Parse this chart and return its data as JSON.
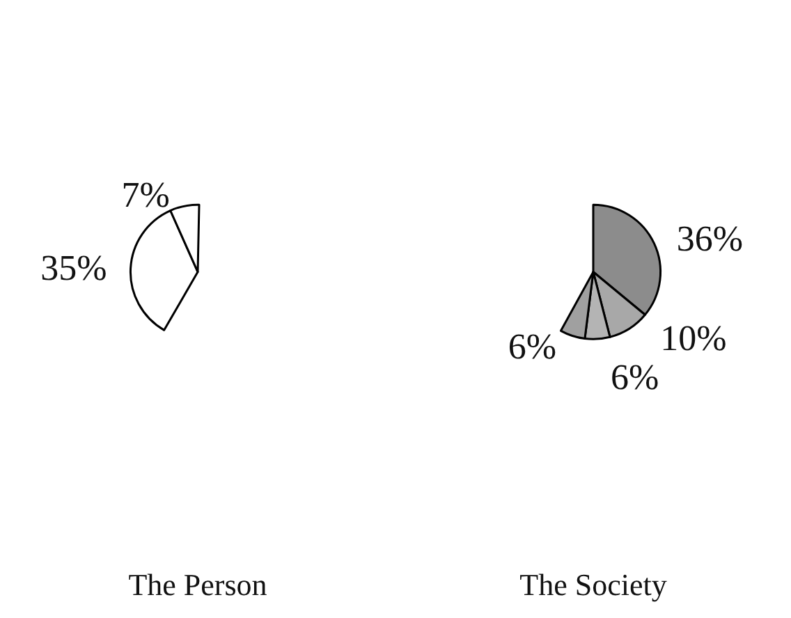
{
  "chart_data": [
    {
      "type": "pie",
      "title": "The Person",
      "categories": [
        null,
        null
      ],
      "values": [
        35,
        7
      ],
      "colors": [
        "#ffffff",
        "#ffffff"
      ],
      "value_labels": [
        "35%",
        "7%"
      ]
    },
    {
      "type": "pie",
      "title": "The Society",
      "categories": [
        null,
        null,
        null,
        null
      ],
      "values": [
        36,
        10,
        6,
        6
      ],
      "colors": [
        "#8c8c8c",
        "#a8a8a8",
        "#b4b4b4",
        "#a0a0a0"
      ],
      "value_labels": [
        "36%",
        "10%",
        "6%",
        "6%"
      ]
    }
  ]
}
